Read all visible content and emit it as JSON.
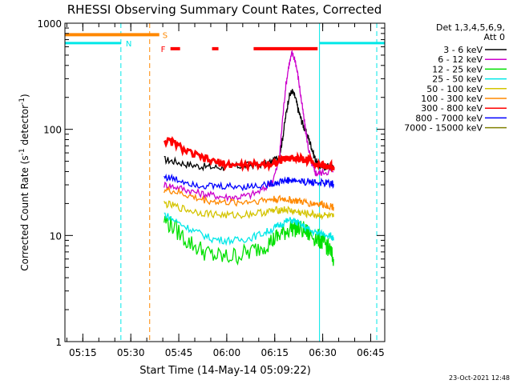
{
  "chart_data": {
    "type": "line",
    "title": "RHESSI Observing Summary Count Rates, Corrected",
    "xlabel": "Start Time (14-May-14 05:09:22)",
    "ylabel_main": "Corrected Count Rate (s",
    "ylabel_exp1": "-1",
    "ylabel_mid": " detector",
    "ylabel_exp2": "-1",
    "ylabel_end": ")",
    "yscale": "log",
    "x_unit": "minutes since 05:09:22 UT",
    "xlim": [
      0,
      100
    ],
    "ylim": [
      1,
      1000
    ],
    "x_ticks": [
      {
        "value": 5.6,
        "label": "05:15"
      },
      {
        "value": 20.6,
        "label": "05:30"
      },
      {
        "value": 35.6,
        "label": "05:45"
      },
      {
        "value": 50.6,
        "label": "06:00"
      },
      {
        "value": 65.6,
        "label": "06:15"
      },
      {
        "value": 80.6,
        "label": "06:30"
      },
      {
        "value": 95.6,
        "label": "06:45"
      }
    ],
    "y_ticks": [
      {
        "value": 1,
        "label": "1"
      },
      {
        "value": 10,
        "label": "10"
      },
      {
        "value": 100,
        "label": "100"
      },
      {
        "value": 1000,
        "label": "1000"
      }
    ],
    "legend_header": [
      "Det 1,3,4,5,6,9,",
      "Att 0"
    ],
    "timestamp": "23-Oct-2021 12:48",
    "series": [
      {
        "name": "3 - 6 keV",
        "color": "#000000",
        "points": [
          [
            31,
            52
          ],
          [
            34,
            50
          ],
          [
            38,
            47
          ],
          [
            42,
            45
          ],
          [
            46,
            44
          ],
          [
            50,
            44
          ],
          [
            54,
            45
          ],
          [
            58,
            46
          ],
          [
            62,
            47
          ],
          [
            65,
            50
          ],
          [
            67,
            55
          ],
          [
            68,
            80
          ],
          [
            69,
            130
          ],
          [
            70,
            200
          ],
          [
            71,
            230
          ],
          [
            72,
            200
          ],
          [
            73,
            150
          ],
          [
            74,
            120
          ],
          [
            75,
            100
          ],
          [
            76,
            85
          ],
          [
            77,
            70
          ],
          [
            78,
            55
          ],
          [
            79,
            47
          ],
          [
            80,
            44
          ],
          [
            82,
            45
          ],
          [
            84,
            44
          ]
        ]
      },
      {
        "name": "6 - 12 keV",
        "color": "#cc00cc",
        "points": [
          [
            31,
            30
          ],
          [
            34,
            29
          ],
          [
            38,
            27
          ],
          [
            42,
            25
          ],
          [
            46,
            24
          ],
          [
            50,
            23
          ],
          [
            54,
            23
          ],
          [
            58,
            24
          ],
          [
            62,
            27
          ],
          [
            65,
            33
          ],
          [
            67,
            50
          ],
          [
            68,
            120
          ],
          [
            69,
            250
          ],
          [
            70,
            400
          ],
          [
            71,
            520
          ],
          [
            72,
            450
          ],
          [
            73,
            300
          ],
          [
            74,
            180
          ],
          [
            75,
            110
          ],
          [
            76,
            70
          ],
          [
            77,
            50
          ],
          [
            78,
            40
          ],
          [
            79,
            38
          ],
          [
            81,
            40
          ],
          [
            84,
            40
          ]
        ]
      },
      {
        "name": "12 - 25 keV",
        "color": "#00e000",
        "points": [
          [
            31,
            14
          ],
          [
            34,
            12
          ],
          [
            38,
            9
          ],
          [
            42,
            7.5
          ],
          [
            46,
            6.5
          ],
          [
            50,
            6.2
          ],
          [
            54,
            6.5
          ],
          [
            58,
            7
          ],
          [
            62,
            8
          ],
          [
            65,
            9
          ],
          [
            67,
            10
          ],
          [
            69,
            11
          ],
          [
            71,
            12
          ],
          [
            73,
            11.5
          ],
          [
            75,
            11
          ],
          [
            77,
            10
          ],
          [
            79,
            9.5
          ],
          [
            80,
            9
          ],
          [
            81,
            8.5
          ],
          [
            82,
            8
          ],
          [
            83,
            7
          ],
          [
            84,
            6
          ]
        ]
      },
      {
        "name": "25 - 50 keV",
        "color": "#00e8e8",
        "points": [
          [
            31,
            16
          ],
          [
            34,
            14
          ],
          [
            38,
            12
          ],
          [
            42,
            10.5
          ],
          [
            46,
            9.3
          ],
          [
            50,
            9
          ],
          [
            54,
            9
          ],
          [
            58,
            9.5
          ],
          [
            62,
            10.5
          ],
          [
            65,
            11.5
          ],
          [
            67,
            12.5
          ],
          [
            69,
            13.5
          ],
          [
            71,
            14
          ],
          [
            73,
            13
          ],
          [
            75,
            12
          ],
          [
            77,
            11
          ],
          [
            79,
            10.5
          ],
          [
            81,
            10.5
          ],
          [
            83,
            10
          ],
          [
            84,
            9
          ]
        ]
      },
      {
        "name": "50 - 100 keV",
        "color": "#d4c400",
        "points": [
          [
            31,
            20
          ],
          [
            34,
            19
          ],
          [
            38,
            17.5
          ],
          [
            42,
            16.5
          ],
          [
            46,
            16
          ],
          [
            50,
            15.5
          ],
          [
            54,
            15.5
          ],
          [
            58,
            16
          ],
          [
            62,
            16.5
          ],
          [
            65,
            17
          ],
          [
            67,
            17.5
          ],
          [
            69,
            17.5
          ],
          [
            71,
            17
          ],
          [
            73,
            16.5
          ],
          [
            75,
            16
          ],
          [
            77,
            16
          ],
          [
            79,
            15.5
          ],
          [
            81,
            15.5
          ],
          [
            83,
            15
          ],
          [
            84,
            15
          ]
        ]
      },
      {
        "name": "100 - 300 keV",
        "color": "#ff8800",
        "points": [
          [
            31,
            27
          ],
          [
            34,
            26
          ],
          [
            38,
            24
          ],
          [
            42,
            22
          ],
          [
            46,
            21
          ],
          [
            50,
            20.5
          ],
          [
            54,
            20.5
          ],
          [
            58,
            21
          ],
          [
            62,
            21.5
          ],
          [
            65,
            22
          ],
          [
            67,
            22
          ],
          [
            69,
            22
          ],
          [
            71,
            21.5
          ],
          [
            73,
            21
          ],
          [
            75,
            20.5
          ],
          [
            77,
            20
          ],
          [
            79,
            20
          ],
          [
            81,
            19.5
          ],
          [
            83,
            19
          ],
          [
            84,
            18.5
          ]
        ]
      },
      {
        "name": "300 - 800 keV",
        "color": "#ff0000",
        "points": [
          [
            31,
            78
          ],
          [
            34,
            75
          ],
          [
            38,
            62
          ],
          [
            42,
            55
          ],
          [
            46,
            50
          ],
          [
            50,
            47
          ],
          [
            54,
            46
          ],
          [
            58,
            46
          ],
          [
            62,
            47
          ],
          [
            65,
            48
          ],
          [
            67,
            50
          ],
          [
            69,
            53
          ],
          [
            71,
            54
          ],
          [
            73,
            53
          ],
          [
            75,
            52
          ],
          [
            77,
            51
          ],
          [
            79,
            47
          ],
          [
            81,
            45
          ],
          [
            83,
            45
          ],
          [
            84,
            44
          ]
        ]
      },
      {
        "name": "800 - 7000 keV",
        "color": "#0000ff",
        "points": [
          [
            31,
            36
          ],
          [
            34,
            34
          ],
          [
            38,
            32
          ],
          [
            42,
            30
          ],
          [
            46,
            29
          ],
          [
            50,
            29
          ],
          [
            54,
            29
          ],
          [
            58,
            29
          ],
          [
            62,
            30
          ],
          [
            65,
            31
          ],
          [
            67,
            32
          ],
          [
            69,
            33
          ],
          [
            71,
            33
          ],
          [
            73,
            32.5
          ],
          [
            75,
            32
          ],
          [
            77,
            32
          ],
          [
            79,
            31.5
          ],
          [
            81,
            31
          ],
          [
            83,
            31
          ],
          [
            84,
            30.5
          ]
        ]
      },
      {
        "name": "7000 - 15000 keV",
        "color": "#808000",
        "points": []
      }
    ],
    "attenuator_bar": {
      "label": "S",
      "color": "#ff8800",
      "start": 0,
      "end": 29.5,
      "y": 780
    },
    "night_bars": {
      "label": "N",
      "color": "#00e8e8",
      "segments": [
        [
          0,
          17.5
        ],
        [
          79.6,
          100
        ]
      ],
      "y": 650
    },
    "flare_bar": {
      "label": "F",
      "color": "#ff0000",
      "segments": [
        [
          33,
          36
        ],
        [
          46,
          48
        ],
        [
          59,
          79
        ]
      ],
      "y": 575
    },
    "vlines": [
      {
        "x": 17.5,
        "color": "#00e8e8",
        "dash": true
      },
      {
        "x": 26.5,
        "color": "#ff8800",
        "dash": true
      },
      {
        "x": 79.6,
        "color": "#00e8e8",
        "dash": false
      },
      {
        "x": 97.5,
        "color": "#00e8e8",
        "dash": true
      }
    ]
  }
}
